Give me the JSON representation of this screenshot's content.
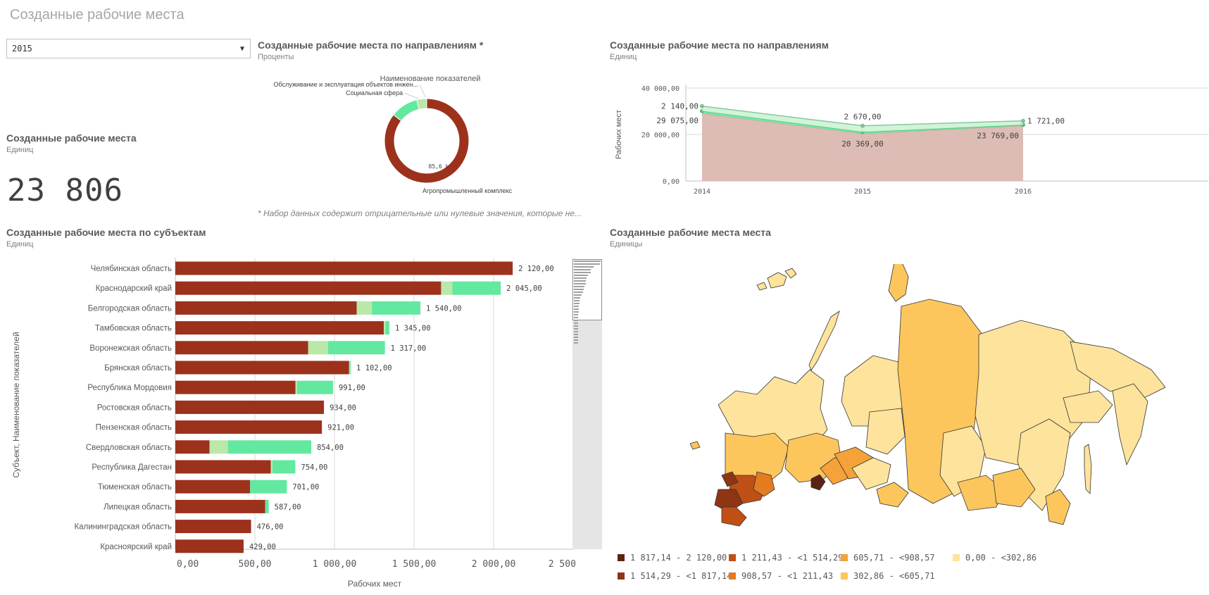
{
  "page": {
    "title": "Созданные рабочие места"
  },
  "filter": {
    "selected": "2015"
  },
  "kpi": {
    "title": "Созданные рабочие места",
    "subtitle": "Единиц",
    "value": "23 806"
  },
  "donut": {
    "title": "Созданные рабочие места по направлениям *",
    "subtitle": "Проценты",
    "legend_title": "Наименование показателей",
    "footnote": "* Набор данных содержит отрицательные или нулевые значения, которые не...",
    "colors": {
      "agro": "#9c321c",
      "social": "#63e8a0",
      "service": "#b9e8a8"
    }
  },
  "line_panel": {
    "title": "Созданные рабочие места по направлениям",
    "subtitle": "Единиц"
  },
  "bar_panel": {
    "title": "Созданные рабочие места по субъектам",
    "subtitle": "Единиц"
  },
  "map_panel": {
    "title": "Созданные рабочие места места",
    "subtitle": "Единицы",
    "legend": [
      {
        "label": "1 817,14 - 2 120,00",
        "color": "#5a2414"
      },
      {
        "label": "1 514,29 - <1 817,14",
        "color": "#8e3513"
      },
      {
        "label": "1 211,43 - <1 514,29",
        "color": "#c04f16"
      },
      {
        "label": "908,57 - <1 211,43",
        "color": "#e57b21"
      },
      {
        "label": "605,71 - <908,57",
        "color": "#f5a23a"
      },
      {
        "label": "302,86 - <605,71",
        "color": "#fdc65c"
      },
      {
        "label": "0,00 - <302,86",
        "color": "#fde39b"
      }
    ]
  },
  "chart_data": [
    {
      "type": "pie",
      "variant": "donut",
      "title": "Созданные рабочие места по направлениям *",
      "subtitle": "Проценты",
      "legend_title": "Наименование показателей",
      "slices": [
        {
          "label": "Агропромышленный комплекс",
          "value": 85.6,
          "value_label": "85,6 %",
          "color": "#9c321c"
        },
        {
          "label": "Социальная сфера",
          "value": 10.6,
          "color": "#63e8a0"
        },
        {
          "label": "Обслуживание и эксплуатация объектов инжен...",
          "value": 3.8,
          "color": "#b9e8a8"
        }
      ]
    },
    {
      "type": "area",
      "title": "Созданные рабочие места по направлениям",
      "subtitle": "Единиц",
      "ylabel": "Рабочих мест",
      "x": [
        "2014",
        "2015",
        "2016"
      ],
      "ylim": [
        0,
        40000
      ],
      "yticks": [
        "0,00",
        "20 000,00",
        "40 000,00"
      ],
      "series": [
        {
          "values": [
            29075,
            20369,
            23769
          ],
          "labels": [
            "29 075,00",
            "20 369,00",
            "23 769,00"
          ],
          "color": "#dcbcb4"
        },
        {
          "values": [
            1000,
            700,
            400
          ],
          "color": "#63e8a0"
        },
        {
          "values": [
            2140,
            2670,
            1721
          ],
          "labels": [
            "2 140,00",
            "2 670,00",
            "1 721,00"
          ],
          "color": "#c9f2d2"
        }
      ]
    },
    {
      "type": "bar",
      "orientation": "horizontal",
      "stacked": true,
      "title": "Созданные рабочие места по субъектам",
      "subtitle": "Единиц",
      "xlabel": "Рабочих мест",
      "ylabel": "Субъект, Наименование показателей",
      "xlim": [
        0,
        2500
      ],
      "xticks": [
        "0,00",
        "500,00",
        "1 000,00",
        "1 500,00",
        "2 000,00",
        "2 500,..."
      ],
      "categories": [
        "Челябинская область",
        "Краснодарский край",
        "Белгородская область",
        "Тамбовская область",
        "Воронежская область",
        "Брянская область",
        "Республика Мордовия",
        "Ростовская область",
        "Пензенская область",
        "Свердловская область",
        "Республика Дагестан",
        "Тюменская область",
        "Липецкая область",
        "Калининградская область",
        "Красноярский край"
      ],
      "totals": [
        "2 120,00",
        "2 045,00",
        "1 540,00",
        "1 345,00",
        "1 317,00",
        "1 102,00",
        "991,00",
        "934,00",
        "921,00",
        "854,00",
        "754,00",
        "701,00",
        "587,00",
        "476,00",
        "429,00"
      ],
      "series": [
        {
          "values": [
            2120,
            1670,
            1140,
            1310,
            835,
            1092,
            755,
            934,
            921,
            215,
            600,
            470,
            565,
            476,
            429
          ],
          "color": "#9c321c"
        },
        {
          "values": [
            0,
            70,
            95,
            10,
            125,
            5,
            10,
            0,
            0,
            115,
            10,
            0,
            0,
            0,
            0
          ],
          "color": "#b9e8a8"
        },
        {
          "values": [
            0,
            305,
            305,
            25,
            357,
            5,
            226,
            0,
            0,
            524,
            144,
            231,
            22,
            0,
            0
          ],
          "color": "#63e8a0"
        }
      ]
    }
  ]
}
